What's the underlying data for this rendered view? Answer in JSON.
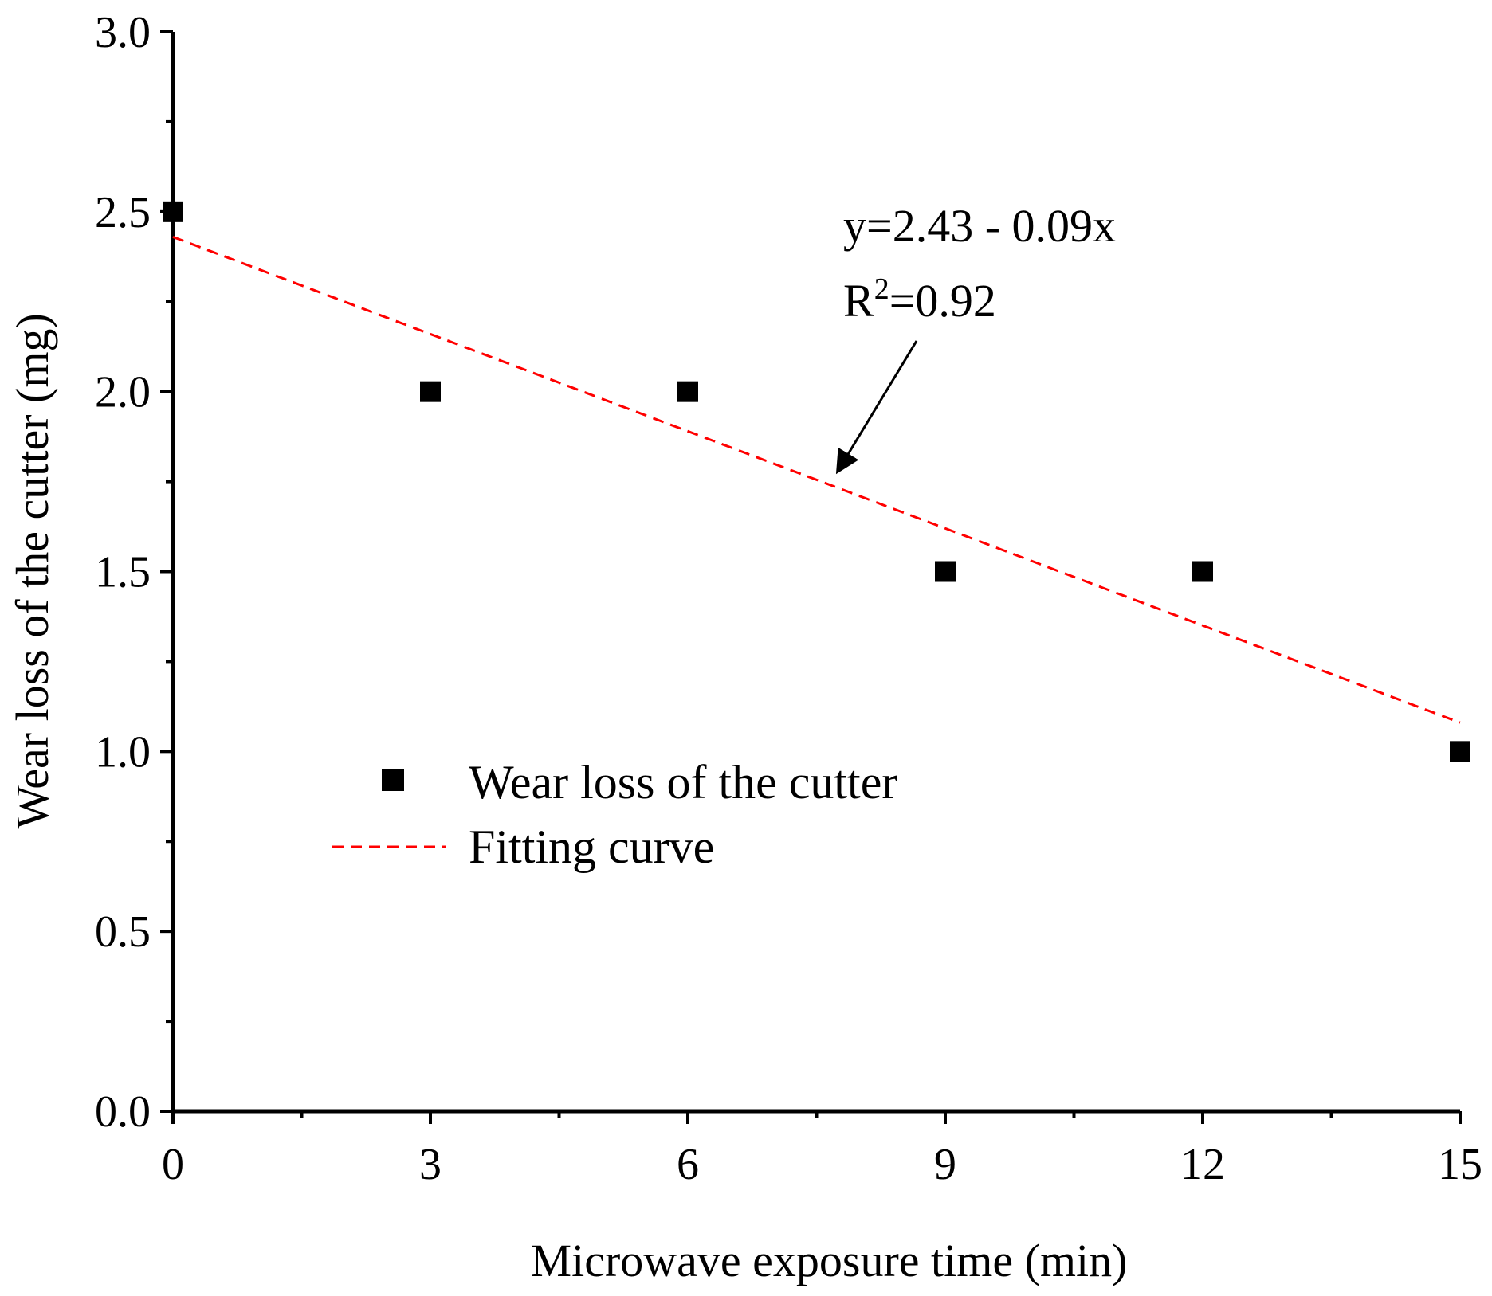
{
  "chart_data": {
    "type": "scatter",
    "title": "",
    "xlabel": "Microwave exposure time (min)",
    "ylabel": "Wear loss of the cutter (mg)",
    "xlim": [
      0,
      15
    ],
    "ylim": [
      0.0,
      3.0
    ],
    "x_ticks": [
      "0",
      "3",
      "6",
      "9",
      "12",
      "15"
    ],
    "y_ticks": [
      "0.0",
      "0.5",
      "1.0",
      "1.5",
      "2.0",
      "2.5",
      "3.0"
    ],
    "series": [
      {
        "name": "Wear loss of the cutter",
        "kind": "scatter",
        "marker": "square",
        "color": "#000000",
        "x": [
          0,
          3,
          6,
          9,
          12,
          15
        ],
        "y": [
          2.5,
          2.0,
          2.0,
          1.5,
          1.5,
          1.0
        ]
      },
      {
        "name": "Fitting curve",
        "kind": "line",
        "style": "dashed",
        "color": "#ff0000",
        "intercept": 2.43,
        "slope": -0.09,
        "x": [
          0,
          15
        ],
        "y": [
          2.43,
          1.08
        ]
      }
    ],
    "annotation": {
      "equation": "y=2.43 - 0.09x",
      "r2_prefix": "R",
      "r2_sup": "2",
      "r2_value": "=0.92",
      "arrow_target": {
        "x": 7.7,
        "y": 1.76
      }
    },
    "legend": {
      "position": "center-left",
      "entries": [
        "Wear loss of the cutter",
        "Fitting curve"
      ]
    },
    "grid": false
  }
}
